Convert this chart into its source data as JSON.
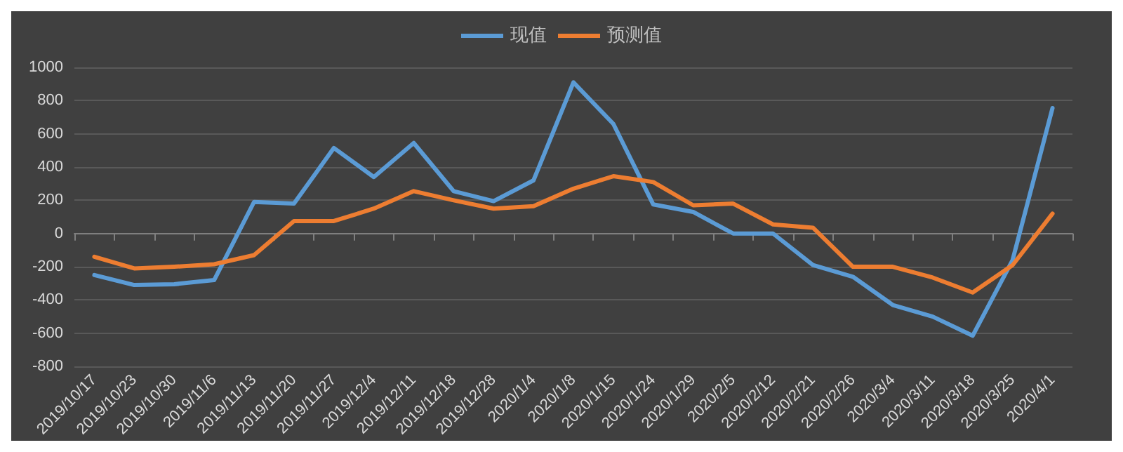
{
  "chart_data": {
    "type": "line",
    "categories": [
      "2019/10/17",
      "2019/10/23",
      "2019/10/30",
      "2019/11/6",
      "2019/11/13",
      "2019/11/20",
      "2019/11/27",
      "2019/12/4",
      "2019/12/11",
      "2019/12/18",
      "2019/12/28",
      "2020/1/4",
      "2020/1/8",
      "2020/1/15",
      "2020/1/24",
      "2020/1/29",
      "2020/2/5",
      "2020/2/12",
      "2020/2/21",
      "2020/2/26",
      "2020/3/4",
      "2020/3/11",
      "2020/3/18",
      "2020/3/25",
      "2020/4/1"
    ],
    "series": [
      {
        "name": "现值",
        "color": "#5b9bd5",
        "values": [
          -250,
          -310,
          -305,
          -280,
          190,
          180,
          515,
          340,
          545,
          255,
          195,
          320,
          910,
          660,
          175,
          130,
          0,
          0,
          -190,
          -260,
          -430,
          -500,
          -615,
          -160,
          755
        ]
      },
      {
        "name": "预测值",
        "color": "#ed7d31",
        "values": [
          -140,
          -210,
          -200,
          -185,
          -130,
          75,
          75,
          150,
          255,
          200,
          150,
          165,
          270,
          345,
          310,
          170,
          180,
          55,
          35,
          -200,
          -200,
          -265,
          -355,
          -190,
          120
        ]
      }
    ],
    "ylim": [
      -800,
      1000
    ],
    "yticks": [
      -800,
      -600,
      -400,
      -200,
      0,
      200,
      400,
      600,
      800,
      1000
    ],
    "grid": "y",
    "legend": "top",
    "marker": "none",
    "line_style": "solid"
  }
}
